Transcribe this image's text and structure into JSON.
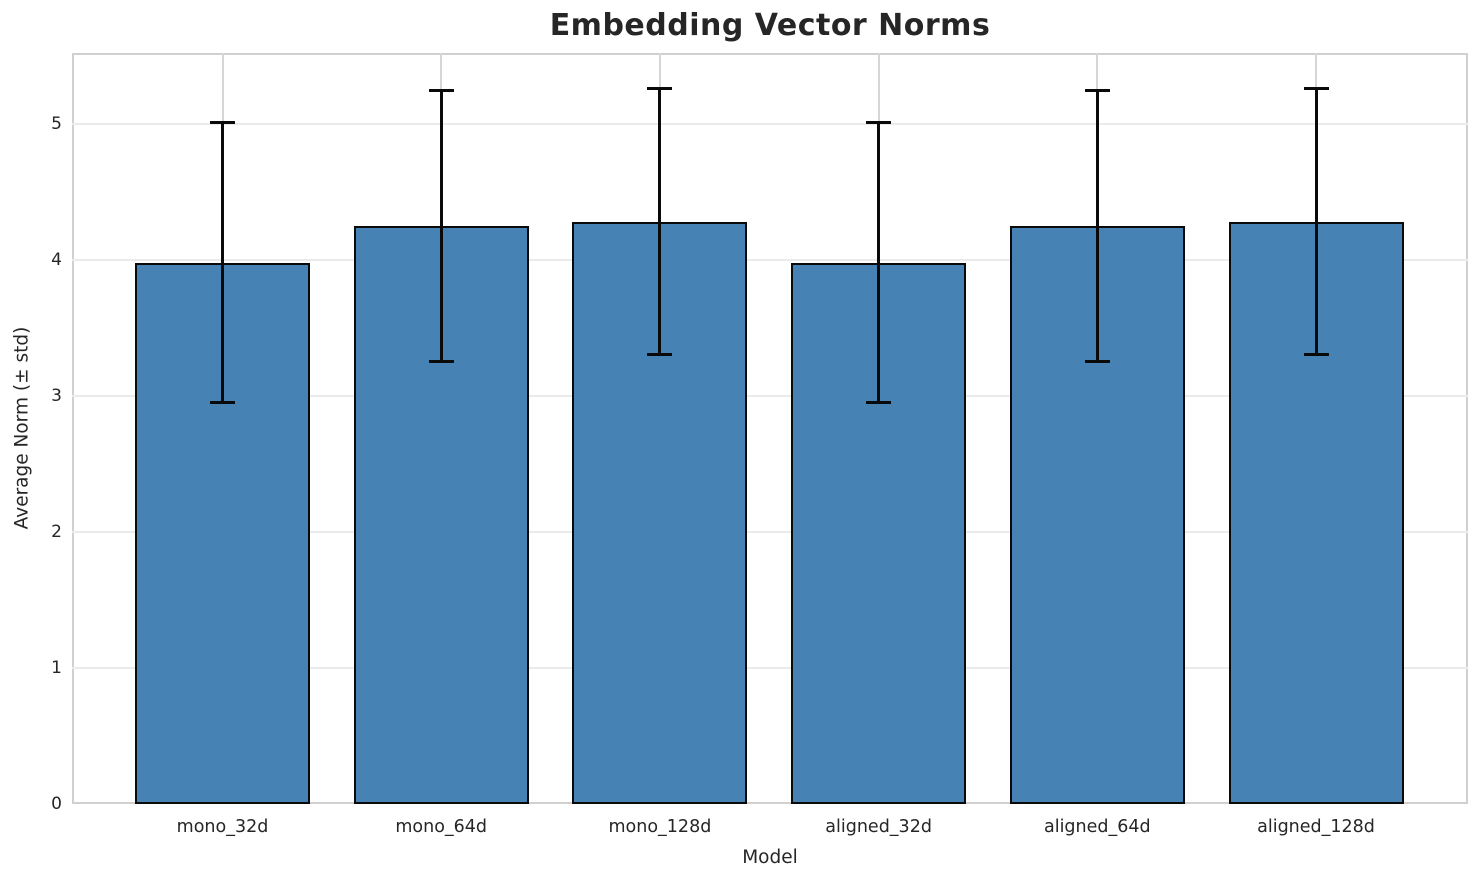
{
  "chart_data": {
    "type": "bar",
    "title": "Embedding Vector Norms",
    "xlabel": "Model",
    "ylabel": "Average Norm (± std)",
    "categories": [
      "mono_32d",
      "mono_64d",
      "mono_128d",
      "aligned_32d",
      "aligned_64d",
      "aligned_128d"
    ],
    "series": [
      {
        "name": "Average Norm",
        "values": [
          3.98,
          4.25,
          4.28,
          3.98,
          4.25,
          4.28
        ],
        "errors": [
          1.03,
          1.0,
          0.98,
          1.03,
          1.0,
          0.98
        ]
      }
    ],
    "yticks": [
      0,
      1,
      2,
      3,
      4,
      5
    ],
    "ylim": [
      0,
      5.52
    ],
    "grid": "both (horizontal light gray lines at integer ticks, vertical light gray lines at category centers)",
    "legend": "none",
    "bar_color": "#4682b4",
    "bar_edge_color": "#0a0a0a",
    "error_bar_color": "#0a0a0a",
    "grid_color_horizontal": "#ebebeb",
    "grid_color_vertical": "#d6d6d6",
    "spine_color": "#d0d0d0",
    "text_color": "#262626"
  }
}
